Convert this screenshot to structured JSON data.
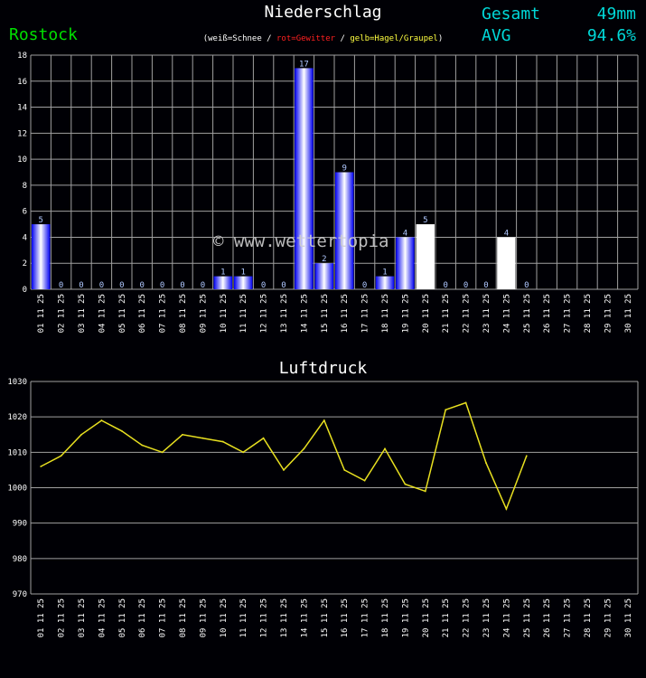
{
  "header": {
    "title": "Niederschlag",
    "station": "Rostock",
    "total_label": "Gesamt",
    "total_value": "49mm",
    "avg_label": "AVG",
    "avg_value": "94.6%"
  },
  "legend": {
    "open": "(",
    "snow": "weiß=Schnee",
    "sep1": " / ",
    "thunder": "rot=Gewitter",
    "sep2": " / ",
    "hail": "gelb=Hagel/Graupel",
    "close": ")"
  },
  "watermark": "© www.wettertopia",
  "colors": {
    "background": "#000005",
    "rain": "#1010ff",
    "snow": "#ffffff",
    "pressure_line": "#e8e020",
    "grid": "#a0a0a0",
    "text": "#ffffff",
    "value_label": "#b0c8ff",
    "station": "#00e000",
    "summary": "#00d8d8",
    "thunder": "#ff2020",
    "hail": "#ffff40"
  },
  "chart_data": [
    {
      "type": "bar",
      "title": "Niederschlag",
      "categories": [
        "01.11.25",
        "02.11.25",
        "03.11.25",
        "04.11.25",
        "05.11.25",
        "06.11.25",
        "07.11.25",
        "08.11.25",
        "09.11.25",
        "10.11.25",
        "11.11.25",
        "12.11.25",
        "13.11.25",
        "14.11.25",
        "15.11.25",
        "16.11.25",
        "17.11.25",
        "18.11.25",
        "19.11.25",
        "20.11.25",
        "21.11.25",
        "22.11.25",
        "23.11.25",
        "24.11.25",
        "25.11.25",
        "26.11.25",
        "27.11.25",
        "28.11.25",
        "29.11.25",
        "30.11.25"
      ],
      "values": [
        5,
        0,
        0,
        0,
        0,
        0,
        0,
        0,
        0,
        1,
        1,
        0,
        0,
        17,
        2,
        9,
        0,
        1,
        4,
        5,
        0,
        0,
        0,
        4,
        0,
        null,
        null,
        null,
        null,
        null
      ],
      "bar_kind": [
        "rain",
        "rain",
        "rain",
        "rain",
        "rain",
        "rain",
        "rain",
        "rain",
        "rain",
        "rain",
        "rain",
        "rain",
        "rain",
        "rain",
        "rain",
        "rain",
        "rain",
        "rain",
        "rain",
        "snow",
        "rain",
        "rain",
        "rain",
        "snow",
        "rain",
        null,
        null,
        null,
        null,
        null
      ],
      "ylim": [
        0,
        18
      ],
      "yticks": [
        0,
        2,
        4,
        6,
        8,
        10,
        12,
        14,
        16,
        18
      ],
      "grid": true
    },
    {
      "type": "line",
      "title": "Luftdruck",
      "categories": [
        "01.11.25",
        "02.11.25",
        "03.11.25",
        "04.11.25",
        "05.11.25",
        "06.11.25",
        "07.11.25",
        "08.11.25",
        "09.11.25",
        "10.11.25",
        "11.11.25",
        "12.11.25",
        "13.11.25",
        "14.11.25",
        "15.11.25",
        "16.11.25",
        "17.11.25",
        "18.11.25",
        "19.11.25",
        "20.11.25",
        "21.11.25",
        "22.11.25",
        "23.11.25",
        "24.11.25",
        "25.11.25",
        "26.11.25",
        "27.11.25",
        "28.11.25",
        "29.11.25",
        "30.11.25"
      ],
      "values": [
        1006,
        1009,
        1015,
        1019,
        1016,
        1012,
        1010,
        1015,
        1014,
        1013,
        1010,
        1014,
        1005,
        1011,
        1019,
        1005,
        1002,
        1011,
        1001,
        999,
        1022,
        1024,
        1007,
        994,
        1009,
        null,
        null,
        null,
        null,
        null
      ],
      "ylim": [
        970,
        1030
      ],
      "yticks": [
        970,
        980,
        990,
        1000,
        1010,
        1020,
        1030
      ],
      "grid": true
    }
  ]
}
